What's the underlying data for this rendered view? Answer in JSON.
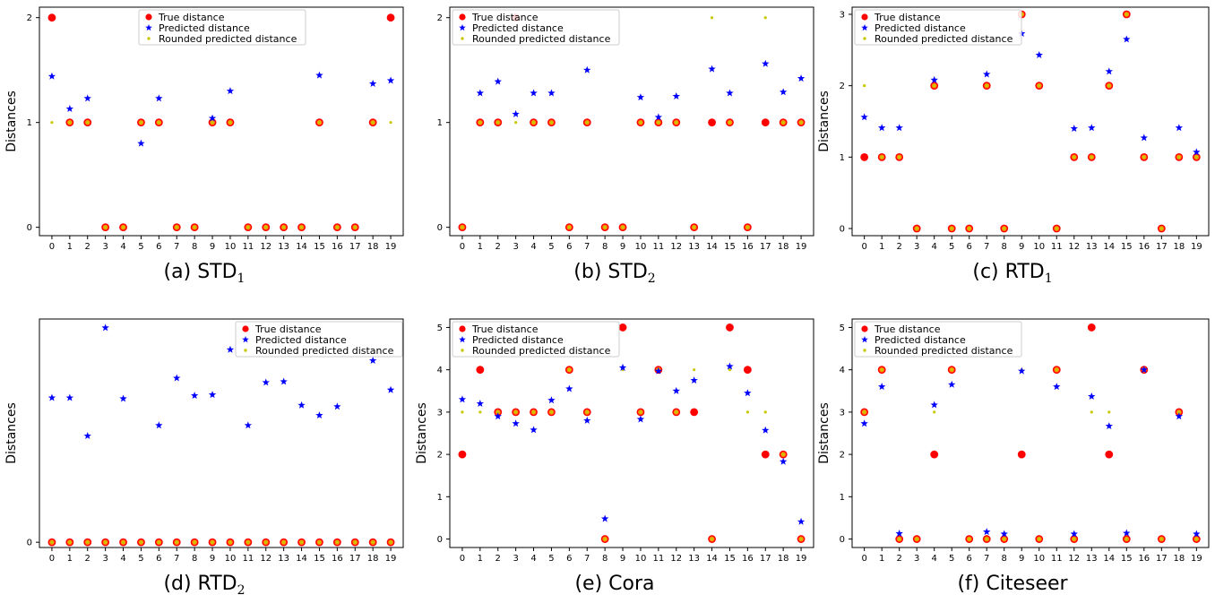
{
  "colors": {
    "true": "#ff0000",
    "pred": "#0000ff",
    "round": "#c8c800",
    "ring": "#ff8c00"
  },
  "legend_labels": [
    "True distance",
    "Predicted distance",
    "Rounded predicted distance"
  ],
  "chart_data": [
    {
      "type": "scatter",
      "caption": "(a) STD",
      "caption_sub": "1",
      "xlabel": "",
      "ylabel": "Distances",
      "x": [
        0,
        1,
        2,
        3,
        4,
        5,
        6,
        7,
        8,
        9,
        10,
        11,
        12,
        13,
        14,
        15,
        16,
        17,
        18,
        19
      ],
      "yticks": [
        0,
        1,
        2
      ],
      "ylim": [
        -0.08,
        2.1
      ],
      "legend": "top-center",
      "series": [
        {
          "name": "True distance",
          "values": [
            2,
            1,
            1,
            0,
            0,
            1,
            1,
            0,
            0,
            1,
            1,
            0,
            0,
            0,
            0,
            1,
            0,
            0,
            1,
            2
          ]
        },
        {
          "name": "Predicted distance",
          "values": [
            1.44,
            1.13,
            1.23,
            null,
            null,
            0.8,
            1.23,
            null,
            null,
            1.04,
            1.3,
            null,
            null,
            null,
            null,
            1.45,
            null,
            null,
            1.37,
            1.4
          ]
        },
        {
          "name": "Rounded predicted distance",
          "values": [
            1,
            1,
            1,
            0,
            0,
            1,
            1,
            0,
            0,
            1,
            1,
            0,
            0,
            0,
            0,
            1,
            0,
            0,
            1,
            1
          ]
        }
      ]
    },
    {
      "type": "scatter",
      "caption": "(b) STD",
      "caption_sub": "2",
      "xlabel": "",
      "ylabel": "",
      "x": [
        0,
        1,
        2,
        3,
        4,
        5,
        6,
        7,
        8,
        9,
        10,
        11,
        12,
        13,
        14,
        15,
        16,
        17,
        18,
        19
      ],
      "yticks": [
        0,
        1,
        2
      ],
      "ylim": [
        -0.08,
        2.1
      ],
      "legend": "top-left",
      "series": [
        {
          "name": "True distance",
          "values": [
            0,
            1,
            1,
            2,
            1,
            1,
            0,
            1,
            0,
            0,
            1,
            1,
            1,
            0,
            1,
            1,
            0,
            1,
            1,
            1
          ]
        },
        {
          "name": "Predicted distance",
          "values": [
            null,
            1.28,
            1.39,
            1.08,
            1.28,
            1.28,
            null,
            1.5,
            null,
            null,
            1.24,
            1.05,
            1.25,
            null,
            1.51,
            1.28,
            null,
            1.56,
            1.29,
            1.42
          ]
        },
        {
          "name": "Rounded predicted distance",
          "values": [
            0,
            1,
            1,
            1,
            1,
            1,
            0,
            1,
            0,
            0,
            1,
            1,
            1,
            0,
            2,
            1,
            0,
            2,
            1,
            1
          ]
        }
      ]
    },
    {
      "type": "scatter",
      "caption": "(c) RTD",
      "caption_sub": "1",
      "xlabel": "",
      "ylabel": "Distances",
      "x": [
        0,
        1,
        2,
        3,
        4,
        5,
        6,
        7,
        8,
        9,
        10,
        11,
        12,
        13,
        14,
        15,
        16,
        17,
        18,
        19
      ],
      "yticks": [
        0,
        1,
        2,
        3
      ],
      "ylim": [
        -0.1,
        3.1
      ],
      "legend": "top-left",
      "series": [
        {
          "name": "True distance",
          "values": [
            1,
            1,
            1,
            0,
            2,
            0,
            0,
            2,
            0,
            3,
            2,
            0,
            1,
            1,
            2,
            3,
            1,
            0,
            1,
            1
          ]
        },
        {
          "name": "Predicted distance",
          "values": [
            1.56,
            1.41,
            1.41,
            null,
            2.08,
            null,
            null,
            2.16,
            null,
            2.73,
            2.43,
            null,
            1.4,
            1.41,
            2.2,
            2.65,
            1.27,
            null,
            1.41,
            1.07
          ]
        },
        {
          "name": "Rounded predicted distance",
          "values": [
            2,
            1,
            1,
            0,
            2,
            0,
            0,
            2,
            0,
            3,
            2,
            0,
            1,
            1,
            2,
            3,
            1,
            0,
            1,
            1
          ]
        }
      ]
    },
    {
      "type": "scatter",
      "caption": "(d) RTD",
      "caption_sub": "2",
      "xlabel": "",
      "ylabel": "Distances",
      "x": [
        0,
        1,
        2,
        3,
        4,
        5,
        6,
        7,
        8,
        9,
        10,
        11,
        12,
        13,
        14,
        15,
        16,
        17,
        18,
        19
      ],
      "yticks": [
        0
      ],
      "ylim": [
        -0.12,
        5.1
      ],
      "legend": "top-right",
      "series": [
        {
          "name": "True distance",
          "values": [
            0,
            0,
            0,
            0,
            0,
            0,
            0,
            0,
            0,
            0,
            0,
            0,
            0,
            0,
            0,
            0,
            0,
            0,
            0,
            0
          ]
        },
        {
          "name": "Predicted distance",
          "values": [
            3.3,
            3.3,
            2.43,
            4.9,
            3.28,
            null,
            2.67,
            3.75,
            3.35,
            3.37,
            4.4,
            2.67,
            3.65,
            3.67,
            3.13,
            2.9,
            3.1,
            null,
            4.15,
            3.48
          ]
        },
        {
          "name": "Rounded predicted distance",
          "values": [
            0,
            0,
            0,
            0,
            0,
            0,
            0,
            0,
            0,
            0,
            0,
            0,
            0,
            0,
            0,
            0,
            0,
            0,
            0,
            0
          ]
        }
      ]
    },
    {
      "type": "scatter",
      "caption": "(e) Cora",
      "caption_sub": "",
      "xlabel": "",
      "ylabel": "Distances",
      "x": [
        0,
        1,
        2,
        3,
        4,
        5,
        6,
        7,
        8,
        9,
        10,
        11,
        12,
        13,
        14,
        15,
        16,
        17,
        18,
        19
      ],
      "yticks": [
        0,
        1,
        2,
        3,
        4,
        5
      ],
      "ylim": [
        -0.2,
        5.2
      ],
      "legend": "top-left",
      "series": [
        {
          "name": "True distance",
          "values": [
            2,
            4,
            3,
            3,
            3,
            3,
            4,
            3,
            0,
            5,
            3,
            4,
            3,
            3,
            0,
            5,
            4,
            2,
            2,
            0
          ]
        },
        {
          "name": "Predicted distance",
          "values": [
            3.3,
            3.2,
            2.9,
            2.73,
            2.58,
            3.28,
            3.55,
            2.8,
            0.48,
            4.05,
            2.83,
            3.97,
            3.5,
            3.75,
            null,
            4.08,
            3.45,
            2.57,
            1.83,
            0.41
          ]
        },
        {
          "name": "Rounded predicted distance",
          "values": [
            3,
            3,
            3,
            3,
            3,
            3,
            4,
            3,
            0,
            4,
            3,
            4,
            3,
            4,
            0,
            4,
            3,
            3,
            2,
            0
          ]
        }
      ]
    },
    {
      "type": "scatter",
      "caption": "(f) Citeseer",
      "caption_sub": "",
      "xlabel": "",
      "ylabel": "Distances",
      "x": [
        0,
        1,
        2,
        3,
        4,
        5,
        6,
        7,
        8,
        9,
        10,
        11,
        12,
        13,
        14,
        15,
        16,
        17,
        18,
        19
      ],
      "yticks": [
        0,
        1,
        2,
        3,
        4,
        5
      ],
      "ylim": [
        -0.2,
        5.2
      ],
      "legend": "top-left",
      "series": [
        {
          "name": "True distance",
          "values": [
            3,
            4,
            0,
            0,
            2,
            4,
            0,
            0,
            0,
            2,
            0,
            4,
            0,
            5,
            2,
            0,
            4,
            0,
            3,
            0
          ]
        },
        {
          "name": "Predicted distance",
          "values": [
            2.73,
            3.6,
            0.13,
            null,
            3.17,
            3.65,
            null,
            0.17,
            0.12,
            3.97,
            null,
            3.6,
            0.12,
            3.37,
            2.67,
            0.14,
            4.0,
            null,
            2.9,
            0.12
          ]
        },
        {
          "name": "Rounded predicted distance",
          "values": [
            3,
            4,
            0,
            0,
            3,
            4,
            0,
            0,
            0,
            4,
            0,
            4,
            0,
            3,
            3,
            0,
            4,
            0,
            3,
            0
          ]
        }
      ]
    }
  ]
}
